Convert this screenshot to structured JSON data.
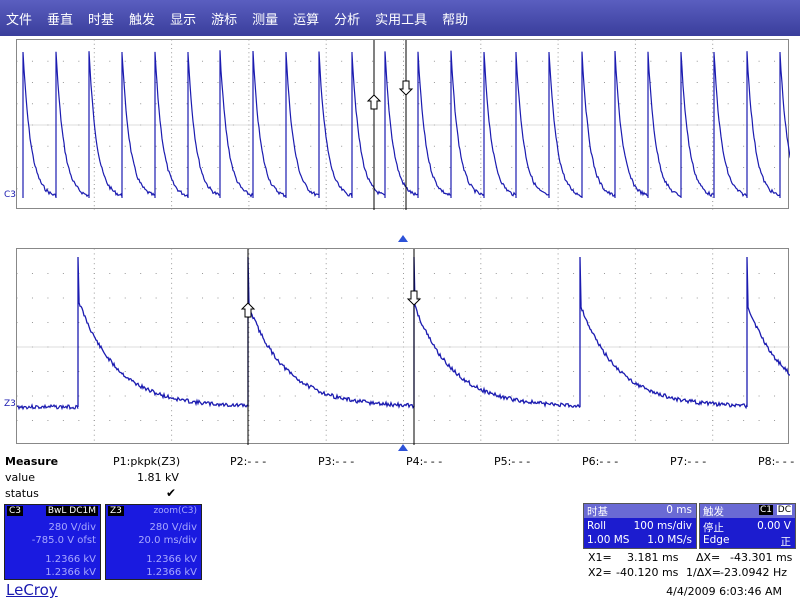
{
  "menu": [
    "文件",
    "垂直",
    "时基",
    "触发",
    "显示",
    "游标",
    "测量",
    "运算",
    "分析",
    "实用工具",
    "帮助"
  ],
  "traces": {
    "top_label": "C3",
    "bottom_label": "Z3",
    "trace_color": "#1b1bb0"
  },
  "measure": {
    "title": "Measure",
    "row_value": "value",
    "row_status": "status",
    "status_mark": "✔",
    "params": [
      {
        "label": "P1:pkpk(Z3)",
        "value": "1.81 kV"
      },
      {
        "label": "P2:- - -",
        "value": ""
      },
      {
        "label": "P3:- - -",
        "value": ""
      },
      {
        "label": "P4:- - -",
        "value": ""
      },
      {
        "label": "P5:- - -",
        "value": ""
      },
      {
        "label": "P6:- - -",
        "value": ""
      },
      {
        "label": "P7:- - -",
        "value": ""
      },
      {
        "label": "P8:- - -",
        "value": ""
      }
    ]
  },
  "channel_boxes": [
    {
      "tag": "C3",
      "name": "BwL DC1M",
      "rows": [
        "280 V/div",
        "-785.0 V ofst",
        "1.2366 kV",
        "1.2366 kV"
      ]
    },
    {
      "tag": "Z3",
      "name": "zoom(C3)",
      "rows": [
        "280 V/div",
        "20.0 ms/div",
        "1.2366 kV",
        "1.2366 kV"
      ]
    }
  ],
  "timebase": {
    "title": "时基",
    "delay": "0 ms",
    "mode": "Roll",
    "div": "100 ms/div",
    "samples": "1.00 MS",
    "rate": "1.0 MS/s"
  },
  "trigger": {
    "title": "触发",
    "ch": "C1",
    "coupling": "DC",
    "state": "停止",
    "level": "0.00 V",
    "type": "Edge",
    "slope": "正"
  },
  "cursors": {
    "x1_label": "X1=",
    "x1_val": "3.181 ms",
    "dx_label": "ΔX=",
    "dx_val": "-43.301 ms",
    "x2_label": "X2=",
    "x2_val": "-40.120 ms",
    "inv_label": "1/ΔX=",
    "inv_val": "-23.0942 Hz"
  },
  "brand": "LeCroy",
  "datetime": "4/4/2009 6:03:46 AM"
}
